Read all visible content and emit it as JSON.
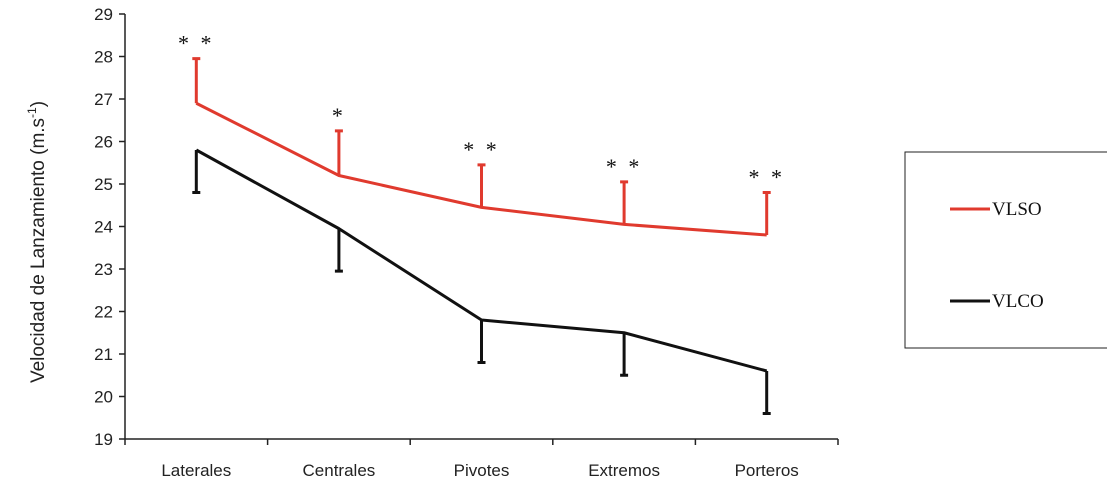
{
  "chart_data": {
    "type": "line",
    "categories": [
      "Laterales",
      "Centrales",
      "Pivotes",
      "Extremos",
      "Porteros"
    ],
    "ylabel": "Velocidad de Lanzamiento (m.s",
    "ylabel_superscript": "-1",
    "ylabel_close": ")",
    "ylim": [
      19,
      29
    ],
    "yticks": [
      19,
      20,
      21,
      22,
      23,
      24,
      25,
      26,
      27,
      28,
      29
    ],
    "series": [
      {
        "name": "VLSO",
        "color": "#e03a2e",
        "values": [
          26.9,
          25.2,
          24.45,
          24.05,
          23.8
        ],
        "error": [
          1.05,
          1.05,
          1.0,
          1.0,
          1.0
        ],
        "error_direction": "up"
      },
      {
        "name": "VLCO",
        "color": "#111111",
        "values": [
          25.8,
          23.95,
          21.8,
          21.5,
          20.6
        ],
        "error": [
          1.0,
          1.0,
          1.0,
          1.0,
          1.0
        ],
        "error_direction": "down"
      }
    ],
    "significance": [
      "* *",
      "*",
      "* *",
      "* *",
      "* *"
    ],
    "legend_position": "right"
  }
}
